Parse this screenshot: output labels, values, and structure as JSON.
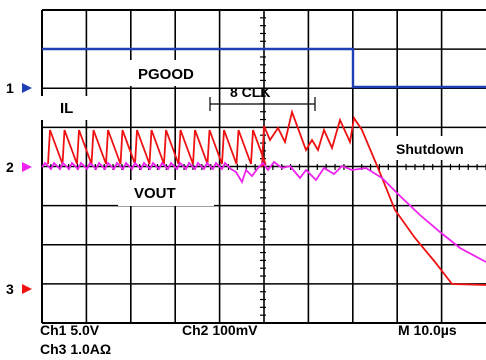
{
  "chart_data": {
    "type": "line",
    "title": "",
    "xlabel": "",
    "ylabel": "",
    "grid": true,
    "time_divisions": 10,
    "series": [
      {
        "name": "PGOOD",
        "channel": 1,
        "color": "#1f3fb5"
      },
      {
        "name": "IL",
        "channel": 3,
        "color": "#ee1111"
      },
      {
        "name": "VOUT",
        "channel": 2,
        "color": "#ee22ee"
      }
    ],
    "channel_markers": [
      {
        "label": "1",
        "color": "#1f3fb5"
      },
      {
        "label": "2",
        "color": "#ee22ee"
      },
      {
        "label": "3",
        "color": "#ee1111"
      }
    ],
    "annotations": {
      "clk": "8 CLK",
      "shutdown": "Shutdown"
    },
    "scale_readouts": {
      "ch1": "Ch1 5.0V",
      "ch2": "Ch2 100mV",
      "ch3": "Ch3 1.0AΩ",
      "timebase": "M 10.0µs"
    }
  }
}
